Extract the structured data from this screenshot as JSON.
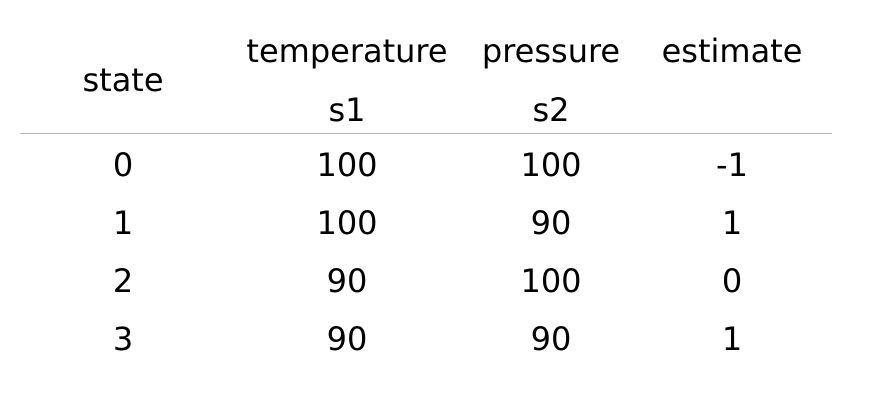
{
  "table": {
    "header": {
      "state": "state",
      "temperature": "temperature",
      "pressure": "pressure",
      "estimate": "estimate",
      "s1": "s1",
      "s2": "s2"
    },
    "rows": [
      {
        "state": "0",
        "temperature": "100",
        "pressure": "100",
        "estimate": "-1"
      },
      {
        "state": "1",
        "temperature": "100",
        "pressure": "90",
        "estimate": "1"
      },
      {
        "state": "2",
        "temperature": "90",
        "pressure": "100",
        "estimate": "0"
      },
      {
        "state": "3",
        "temperature": "90",
        "pressure": "90",
        "estimate": "1"
      }
    ],
    "colors": {
      "text": "#000000",
      "divider": "#b8b8b8"
    }
  }
}
